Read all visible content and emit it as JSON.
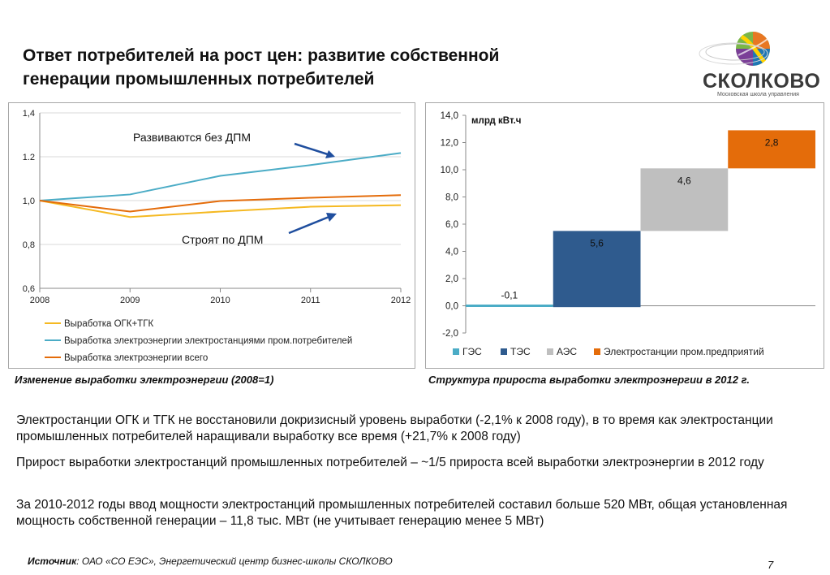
{
  "slide": {
    "title_line1": "Ответ потребителей на рост цен: развитие собственной",
    "title_line2": "генерации промышленных потребителей",
    "logo_text": "СКОЛКОВО",
    "logo_subtitle": "Московская школа управления",
    "caption_left": "Изменение выработки электроэнергии (2008=1)",
    "caption_right": "Структура прироста выработки электроэнергии в 2012 г.",
    "paragraphs": [
      "Электростанции ОГК и ТГК не восстановили докризисный уровень выработки (-2,1% к 2008 году), в то время как электростанции промышленных потребителей наращивали выработку все время (+21,7% к 2008 году)",
      "Прирост выработки электростанций промышленных потребителей – ~1/5 прироста всей выработки электроэнергии в 2012 году",
      "За 2010-2012 годы ввод мощности электростанций промышленных потребителей составил больше 520 МВт, общая установленная мощность собственной генерации – 11,8 тыс. МВт (не учитывает генерацию менее 5 МВт)"
    ],
    "source_label": "Источник",
    "source_text": ": ОАО «СО ЕЭС», Энергетический центр бизнес-школы СКОЛКОВО",
    "page_number": "7",
    "colors": {
      "logo_orange": "#e87722",
      "logo_green": "#7ab648",
      "logo_blue": "#1f77b4",
      "logo_purple": "#7b3f98"
    }
  },
  "chart_data": [
    {
      "type": "line",
      "x": [
        2008,
        2009,
        2010,
        2011,
        2012
      ],
      "x_tick_labels": [
        "2008",
        "2009",
        "2010",
        "2011",
        "2012"
      ],
      "ylim": [
        0.6,
        1.4
      ],
      "y_ticks": [
        0.6,
        0.8,
        1.0,
        1.2,
        1.4
      ],
      "y_tick_labels": [
        "0,6",
        "0,8",
        "1,0",
        "1.2",
        "1,4"
      ],
      "grid": "horizontal",
      "legend_position": "bottom",
      "series": [
        {
          "name": "Выработка ОГК+ТГК",
          "color": "#f5b922",
          "values": [
            1.0,
            0.925,
            0.95,
            0.972,
            0.979
          ]
        },
        {
          "name": "Выработка электроэнергии электростанциями пром.потребителей",
          "color": "#4bacc6",
          "values": [
            1.0,
            1.028,
            1.113,
            1.162,
            1.217
          ]
        },
        {
          "name": "Выработка электроэнергии всего",
          "color": "#e46c0a",
          "values": [
            1.0,
            0.95,
            0.998,
            1.013,
            1.025
          ]
        }
      ],
      "annotations": [
        {
          "text": "Развиваются без ДПМ"
        },
        {
          "text": "Строят по ДПМ"
        }
      ]
    },
    {
      "type": "bar",
      "subtype": "waterfall",
      "unit_label": "млрд кВт.ч",
      "categories": [
        "ГЭС",
        "ТЭС",
        "АЭС",
        "Электростанции пром.предприятий"
      ],
      "values": [
        -0.1,
        5.6,
        4.6,
        2.8
      ],
      "value_labels": [
        "-0,1",
        "5,6",
        "4,6",
        "2,8"
      ],
      "colors": [
        "#4bacc6",
        "#2f5b8e",
        "#bfbfbf",
        "#e46c0a"
      ],
      "ylim": [
        -2.0,
        14.0
      ],
      "y_ticks": [
        -2,
        0,
        2,
        4,
        6,
        8,
        10,
        12,
        14
      ],
      "y_tick_labels": [
        "-2,0",
        "0,0",
        "2,0",
        "4,0",
        "6,0",
        "8,0",
        "10,0",
        "12,0",
        "14,0"
      ],
      "grid": "none",
      "legend_position": "bottom"
    }
  ]
}
